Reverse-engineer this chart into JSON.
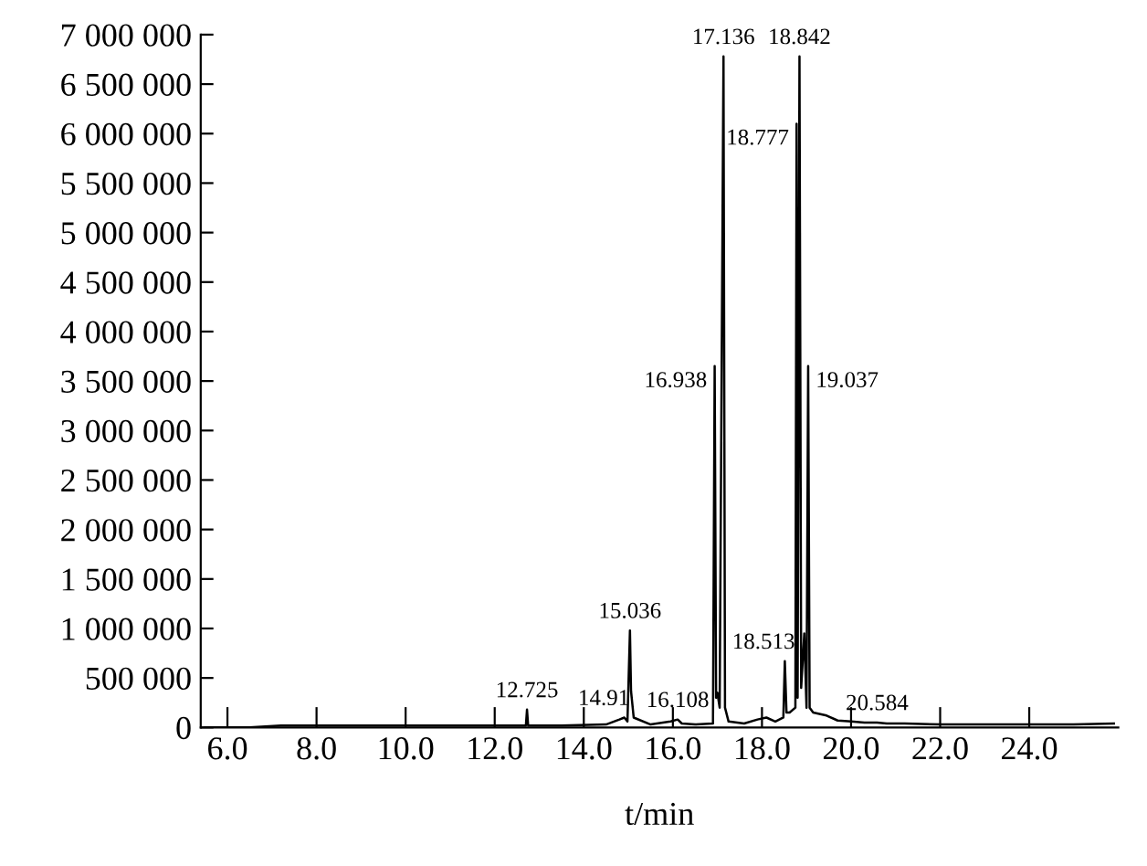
{
  "chart_data": {
    "type": "line",
    "xlabel": "t/min",
    "color": "#000000",
    "grid": false,
    "legend": false,
    "marker": "none",
    "line_style": "solid",
    "x": [
      5.5,
      6.5,
      7.2,
      8.5,
      10.0,
      11.5,
      12.7,
      12.725,
      12.75,
      13.5,
      14.5,
      14.8,
      14.91,
      14.98,
      15.036,
      15.06,
      15.12,
      15.5,
      15.95,
      16.108,
      16.2,
      16.5,
      16.9,
      16.938,
      16.97,
      17.0,
      17.05,
      17.136,
      17.17,
      17.25,
      17.6,
      17.9,
      18.1,
      18.3,
      18.48,
      18.513,
      18.55,
      18.62,
      18.75,
      18.777,
      18.8,
      18.842,
      18.88,
      18.95,
      19.0,
      19.037,
      19.07,
      19.15,
      19.45,
      19.7,
      20.0,
      20.3,
      20.584,
      20.8,
      21.2,
      22.0,
      23.0,
      24.0,
      25.0,
      25.9
    ],
    "values": [
      0,
      0,
      20000,
      20000,
      20000,
      20000,
      20000,
      180000,
      20000,
      20000,
      30000,
      80000,
      100000,
      60000,
      980000,
      370000,
      100000,
      30000,
      60000,
      80000,
      40000,
      30000,
      40000,
      3650000,
      300000,
      350000,
      200000,
      6780000,
      200000,
      60000,
      40000,
      80000,
      100000,
      60000,
      100000,
      670000,
      150000,
      150000,
      200000,
      6100000,
      300000,
      6780000,
      400000,
      950000,
      200000,
      3650000,
      200000,
      150000,
      120000,
      70000,
      60000,
      50000,
      50000,
      40000,
      40000,
      30000,
      30000,
      30000,
      30000,
      40000
    ],
    "xlim": [
      5.4,
      26.0
    ],
    "xticks": [
      {
        "value": 6,
        "label": "6.0"
      },
      {
        "value": 8,
        "label": "8.0"
      },
      {
        "value": 10,
        "label": "10.0"
      },
      {
        "value": 12,
        "label": "12.0"
      },
      {
        "value": 14,
        "label": "14.0"
      },
      {
        "value": 16,
        "label": "16.0"
      },
      {
        "value": 18,
        "label": "18.0"
      },
      {
        "value": 20,
        "label": "20.0"
      },
      {
        "value": 22,
        "label": "22.0"
      },
      {
        "value": 24,
        "label": "24.0"
      }
    ],
    "ylim": [
      0,
      7000000
    ],
    "yticks": [
      0,
      {
        "value": 500000,
        "label": "500 000"
      },
      {
        "value": 1000000,
        "label": "1 000 000"
      },
      {
        "value": 1500000,
        "label": "1 500 000"
      },
      {
        "value": 2000000,
        "label": "2 000 000"
      },
      {
        "value": 2500000,
        "label": "2 500 000"
      },
      {
        "value": 3000000,
        "label": "3 000 000"
      },
      {
        "value": 3500000,
        "label": "3 500 000"
      },
      {
        "value": 4000000,
        "label": "4 000 000"
      },
      {
        "value": 4500000,
        "label": "4 500 000"
      },
      {
        "value": 5000000,
        "label": "5 000 000"
      },
      {
        "value": 5500000,
        "label": "5 500 000"
      },
      {
        "value": 6000000,
        "label": "6 000 000"
      },
      {
        "value": 6500000,
        "label": "6 500 000"
      },
      {
        "value": 7000000,
        "label": "7 000 000"
      }
    ],
    "annotations": [
      {
        "text": "17.136",
        "x": 17.136,
        "y": 6780000
      },
      {
        "text": "18.842",
        "x": 18.842,
        "y": 6780000
      },
      {
        "text": "18.777",
        "x": 18.777,
        "y": 6100000
      },
      {
        "text": "16.938",
        "x": 16.938,
        "y": 3650000
      },
      {
        "text": "19.037",
        "x": 19.037,
        "y": 3650000
      },
      {
        "text": "15.036",
        "x": 15.036,
        "y": 980000
      },
      {
        "text": "18.513",
        "x": 18.513,
        "y": 670000
      },
      {
        "text": "12.725",
        "x": 12.725,
        "y": 180000
      },
      {
        "text": "14.91",
        "x": 14.91,
        "y": 100000
      },
      {
        "text": "16.108",
        "x": 16.108,
        "y": 80000
      },
      {
        "text": "20.584",
        "x": 20.584,
        "y": 50000
      }
    ]
  }
}
